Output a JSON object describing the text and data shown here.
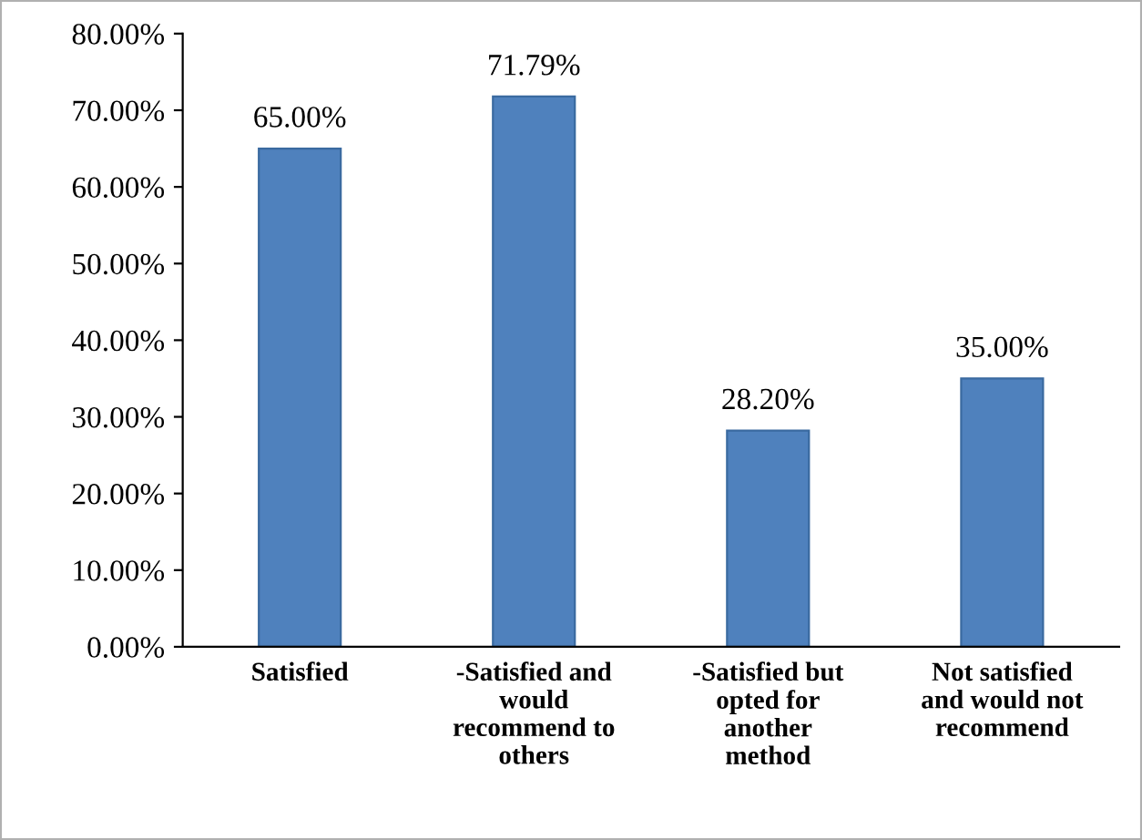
{
  "chart_data": {
    "type": "bar",
    "categories": [
      "Satisfied",
      "-Satisfied and\nwould\nrecommend to\nothers",
      "-Satisfied but\nopted for\nanother\nmethod",
      "Not satisfied\nand would not\nrecommend"
    ],
    "values": [
      65.0,
      71.79,
      28.2,
      35.0
    ],
    "value_labels": [
      "65.00%",
      "71.79%",
      "28.20%",
      "35.00%"
    ],
    "color": "#4f81bd",
    "ylim": [
      0,
      80
    ],
    "yticks": [
      {
        "value": 0,
        "label": "0.00%"
      },
      {
        "value": 10,
        "label": "10.00%"
      },
      {
        "value": 20,
        "label": "20.00%"
      },
      {
        "value": 30,
        "label": "30.00%"
      },
      {
        "value": 40,
        "label": "40.00%"
      },
      {
        "value": 50,
        "label": "50.00%"
      },
      {
        "value": 60,
        "label": "60.00%"
      },
      {
        "value": 70,
        "label": "70.00%"
      },
      {
        "value": 80,
        "label": "80.00%"
      }
    ],
    "grid": false,
    "legend": false
  }
}
